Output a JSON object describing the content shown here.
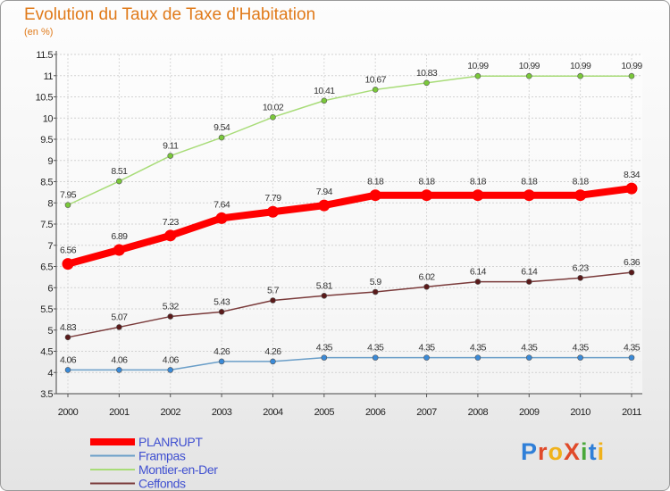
{
  "title": "Evolution du Taux de Taxe d'Habitation",
  "subtitle": "(en %)",
  "logo": {
    "text": "ProXiti",
    "colors": [
      "#2f7fd8",
      "#e04a2a",
      "#f0b21c",
      "#e04a2a",
      "#4aa83a",
      "#2f7fd8",
      "#f0b21c"
    ]
  },
  "chart_data": {
    "type": "line",
    "x": [
      "2000",
      "2001",
      "2002",
      "2003",
      "2004",
      "2005",
      "2006",
      "2007",
      "2008",
      "2009",
      "2010",
      "2011"
    ],
    "ylim": [
      3.5,
      11.5
    ],
    "yticks": [
      "3.5",
      "4",
      "4.5",
      "5",
      "5.5",
      "6",
      "6.5",
      "7",
      "7.5",
      "8",
      "8.5",
      "9",
      "9.5",
      "10",
      "10.5",
      "11",
      "11.5"
    ],
    "grid": true,
    "legend_position": "bottom-left",
    "series": [
      {
        "name": "PLANRUPT",
        "color": "#ff0000",
        "marker": "#ff0000",
        "width": 8,
        "radius": 6,
        "values": [
          6.56,
          6.89,
          7.23,
          7.64,
          7.79,
          7.94,
          8.18,
          8.18,
          8.18,
          8.18,
          8.18,
          8.34
        ],
        "labels": [
          "6.56",
          "6.89",
          "7.23",
          "7.64",
          "7.79",
          "7.94",
          "8.18",
          "8.18",
          "8.18",
          "8.18",
          "8.18",
          "8.34"
        ]
      },
      {
        "name": "Frampas",
        "color": "#6a9ec8",
        "marker": "#3a8ad8",
        "width": 1.5,
        "radius": 3,
        "values": [
          4.06,
          4.06,
          4.06,
          4.26,
          4.26,
          4.35,
          4.35,
          4.35,
          4.35,
          4.35,
          4.35,
          4.35
        ],
        "labels": [
          "4.06",
          "4.06",
          "4.06",
          "4.26",
          "4.26",
          "4.35",
          "4.35",
          "4.35",
          "4.35",
          "4.35",
          "4.35",
          "4.35"
        ]
      },
      {
        "name": "Montier-en-Der",
        "color": "#a8dc78",
        "marker": "#7ac83a",
        "width": 1.5,
        "radius": 3,
        "values": [
          7.95,
          8.51,
          9.11,
          9.54,
          10.02,
          10.41,
          10.67,
          10.83,
          10.99,
          10.99,
          10.99,
          10.99
        ],
        "labels": [
          "7.95",
          "8.51",
          "9.11",
          "9.54",
          "10.02",
          "10.41",
          "10.67",
          "10.83",
          "10.99",
          "10.99",
          "10.99",
          "10.99"
        ]
      },
      {
        "name": "Ceffonds",
        "color": "#7a3a3a",
        "marker": "#5a1a1a",
        "width": 1.5,
        "radius": 3,
        "values": [
          4.83,
          5.07,
          5.32,
          5.43,
          5.7,
          5.81,
          5.9,
          6.02,
          6.14,
          6.14,
          6.23,
          6.36
        ],
        "labels": [
          "4.83",
          "5.07",
          "5.32",
          "5.43",
          "5.7",
          "5.81",
          "5.9",
          "6.02",
          "6.14",
          "6.14",
          "6.23",
          "6.36"
        ]
      }
    ]
  }
}
